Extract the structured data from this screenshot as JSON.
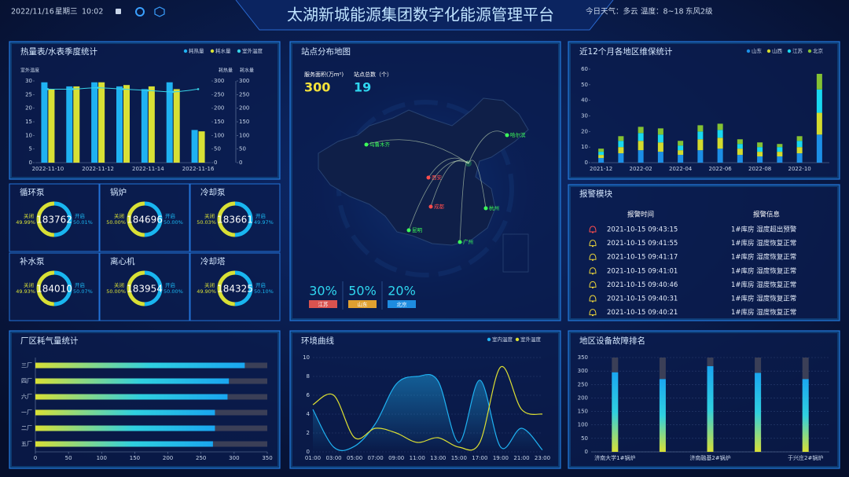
{
  "header": {
    "date": "2022/11/16",
    "weekday": "星期三",
    "time": "10:02",
    "title": "太湖新城能源集团数字化能源管理平台",
    "weather": "今日天气：多云",
    "temperature": "温度：8~18",
    "wind": "东风2级"
  },
  "chart_data": [
    {
      "type": "bar_line",
      "title": "热量表/水表季度统计",
      "categories": [
        "2022-11-10",
        null,
        "2022-11-12",
        null,
        "2022-11-14",
        null,
        "2022-11-16"
      ],
      "ylabel": "室外温度",
      "y2label": "耗热量",
      "y3label": "耗水量",
      "ylim": [
        0,
        30
      ],
      "yticks": [
        0,
        5,
        10,
        15,
        20,
        25,
        30
      ],
      "y2lim": [
        0,
        300
      ],
      "y2ticks": [
        0,
        50,
        100,
        150,
        200,
        250,
        300
      ],
      "y3lim": [
        0,
        300
      ],
      "y3ticks": [
        0,
        50,
        100,
        150,
        200,
        250,
        300
      ],
      "series": [
        {
          "name": "耗热量",
          "color": "#1fb2f2",
          "type": "bar",
          "axis": "y2",
          "values": [
            295,
            280,
            295,
            280,
            270,
            295,
            120
          ]
        },
        {
          "name": "耗水量",
          "color": "#d8e035",
          "type": "bar",
          "axis": "y3",
          "values": [
            270,
            280,
            295,
            285,
            280,
            270,
            115
          ]
        },
        {
          "name": "室外温度",
          "color": "#37d3e8",
          "type": "line",
          "axis": "y",
          "values": [
            27,
            27,
            27.5,
            27,
            26.5,
            26,
            27
          ]
        }
      ]
    },
    {
      "type": "stacked_bar",
      "title": "近12个月各地区维保统计",
      "categories": [
        "2021-12",
        null,
        "2022-02",
        null,
        "2022-04",
        null,
        "2022-06",
        null,
        "2022-08",
        null,
        "2022-10",
        null
      ],
      "ylim": [
        0,
        60
      ],
      "yticks": [
        0,
        10,
        20,
        30,
        40,
        50,
        60
      ],
      "series": [
        {
          "name": "山东",
          "color": "#1c8fe6",
          "values": [
            3,
            6,
            8,
            7,
            5,
            8,
            9,
            5,
            4,
            4,
            6,
            18
          ]
        },
        {
          "name": "山西",
          "color": "#d3db2e",
          "values": [
            2,
            4,
            6,
            6,
            3,
            7,
            7,
            4,
            3,
            3,
            4,
            14
          ]
        },
        {
          "name": "江苏",
          "color": "#19d8f0",
          "values": [
            2,
            4,
            5,
            5,
            3,
            5,
            5,
            3,
            3,
            3,
            4,
            15
          ]
        },
        {
          "name": "北京",
          "color": "#84c233",
          "values": [
            2,
            3,
            4,
            4,
            3,
            4,
            4,
            3,
            3,
            2,
            3,
            10
          ]
        }
      ]
    },
    {
      "type": "hbar",
      "title": "厂区耗气量统计",
      "categories": [
        "三厂",
        "四厂",
        "六厂",
        "一厂",
        "二厂",
        "五厂"
      ],
      "values": [
        316,
        292,
        290,
        271,
        271,
        268
      ],
      "xlim": [
        0,
        350
      ],
      "xticks": [
        0,
        50,
        100,
        150,
        200,
        250,
        300,
        350
      ],
      "track_color": "#3b3f57"
    },
    {
      "type": "line",
      "title": "环境曲线",
      "categories": [
        "01:00",
        "03:00",
        "05:00",
        "07:00",
        "09:00",
        "11:00",
        "13:00",
        "15:00",
        "17:00",
        "19:00",
        "21:00",
        "23:00"
      ],
      "ylim": [
        0,
        10
      ],
      "yticks": [
        0,
        2,
        4,
        6,
        8,
        10
      ],
      "grid": true,
      "series": [
        {
          "name": "室内温度",
          "color": "#1fb2f2",
          "values": [
            4.5,
            0.5,
            0.6,
            3,
            7.2,
            8,
            7.5,
            1,
            7.6,
            0.5,
            2.5,
            0.2
          ]
        },
        {
          "name": "室外温度",
          "color": "#dde032",
          "values": [
            5,
            6,
            1.5,
            2.5,
            2,
            1,
            1.5,
            0.5,
            1,
            9,
            4.5,
            4
          ]
        }
      ]
    },
    {
      "type": "bar",
      "title": "地区设备故障排名",
      "categories": [
        "济南大学1#锅炉",
        null,
        "济南融基2#锅炉",
        null,
        "于兴庄2#锅炉"
      ],
      "values": [
        295,
        270,
        318,
        293,
        270
      ],
      "ylim": [
        0,
        350
      ],
      "yticks": [
        0,
        50,
        100,
        150,
        200,
        250,
        300,
        350
      ],
      "track_color": "#3b3f57"
    }
  ],
  "gauges": [
    {
      "title": "循环泵",
      "total": 183762,
      "closed_name": "关闭",
      "closed": 49.99,
      "closed_label": "49.99%",
      "open_name": "开启",
      "open": 50.01,
      "open_label": "50.01%"
    },
    {
      "title": "锅炉",
      "total": 184696,
      "closed_name": "关闭",
      "closed": 50.0,
      "closed_label": "50.00%",
      "open_name": "开启",
      "open": 50.0,
      "open_label": "50.00%"
    },
    {
      "title": "冷却泵",
      "total": 183661,
      "closed_name": "关闭",
      "closed": 50.03,
      "closed_label": "50.03%",
      "open_name": "开启",
      "open": 49.97,
      "open_label": "49.97%"
    },
    {
      "title": "补水泵",
      "total": 184010,
      "closed_name": "关闭",
      "closed": 49.93,
      "closed_label": "49.93%",
      "open_name": "开启",
      "open": 50.07,
      "open_label": "50.07%"
    },
    {
      "title": "离心机",
      "total": 183954,
      "closed_name": "关闭",
      "closed": 50.0,
      "closed_label": "50.00%",
      "open_name": "开启",
      "open": 50.0,
      "open_label": "50.00%"
    },
    {
      "title": "冷却塔",
      "total": 184325,
      "closed_name": "关闭",
      "closed": 49.9,
      "closed_label": "49.90%",
      "open_name": "开启",
      "open": 50.1,
      "open_label": "50.10%"
    }
  ],
  "map": {
    "title": "站点分布地图",
    "area_label": "服务面积(万m²)",
    "area": 300,
    "sites_label": "站点总数（个）",
    "sites": 19,
    "cities": [
      {
        "name": "乌鲁木齐",
        "color": "#3cff5a"
      },
      {
        "name": "哈尔滨",
        "color": "#3cff5a"
      },
      {
        "name": "西安",
        "color": "#ff4d4d"
      },
      {
        "name": "成都",
        "color": "#ff4d4d"
      },
      {
        "name": "杭州",
        "color": "#3cff5a"
      },
      {
        "name": "昆明",
        "color": "#3cff5a"
      },
      {
        "name": "广州",
        "color": "#3cff5a"
      }
    ],
    "shares": [
      {
        "name": "江苏",
        "value": 30,
        "label": "30%",
        "color": "#d9534f"
      },
      {
        "name": "山东",
        "value": 50,
        "label": "50%",
        "color": "#e0a030"
      },
      {
        "name": "北京",
        "value": 20,
        "label": "20%",
        "color": "#1e8ce0"
      }
    ]
  },
  "alarms": {
    "title": "报警模块",
    "headers": [
      "报警时间",
      "报警信息"
    ],
    "rows": [
      {
        "time": "2021-10-15 09:43:15",
        "info": "1#库房 湿度超出预警",
        "color": "#ff4d4d"
      },
      {
        "time": "2021-10-15 09:41:55",
        "info": "1#库房 湿度恢复正常",
        "color": "#e8d23a"
      },
      {
        "time": "2021-10-15 09:41:17",
        "info": "1#库房 湿度恢复正常",
        "color": "#e8d23a"
      },
      {
        "time": "2021-10-15 09:41:01",
        "info": "1#库房 湿度恢复正常",
        "color": "#e8d23a"
      },
      {
        "time": "2021-10-15 09:40:46",
        "info": "1#库房 湿度恢复正常",
        "color": "#e8d23a"
      },
      {
        "time": "2021-10-15 09:40:31",
        "info": "1#库房 湿度恢复正常",
        "color": "#e8d23a"
      },
      {
        "time": "2021-10-15 09:40:21",
        "info": "1#库房 湿度恢复正常",
        "color": "#e8d23a"
      }
    ]
  }
}
